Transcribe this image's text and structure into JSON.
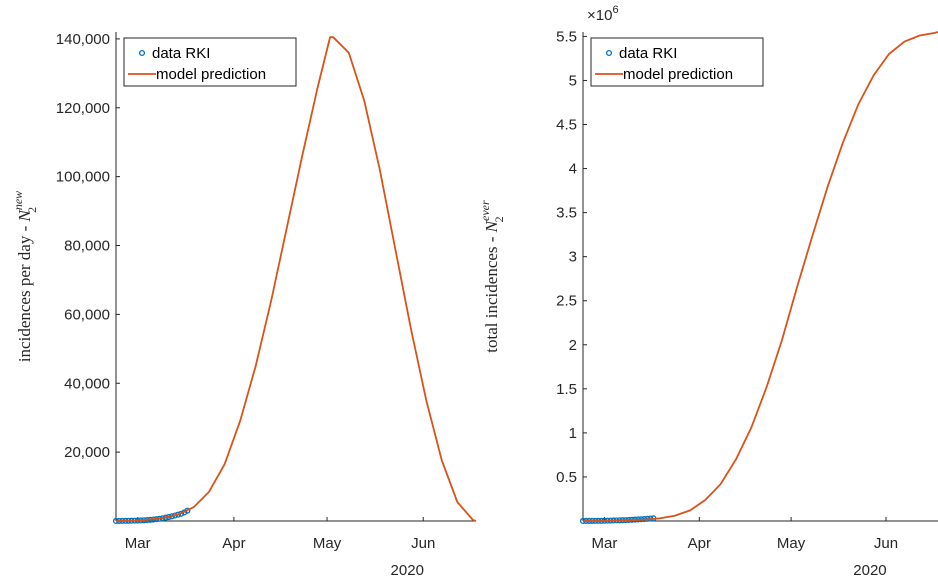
{
  "chart_data": [
    {
      "type": "line",
      "ylabel_prefix": "incidences per day - ",
      "ylabel_symbol": "N",
      "ylabel_sub": "2",
      "ylabel_sup": "new",
      "x_tick_labels": [
        "Mar",
        "Apr",
        "May",
        "Jun"
      ],
      "x_tick_days": [
        7,
        38,
        68,
        99
      ],
      "year_label": "2020",
      "xlim_days": [
        0,
        116
      ],
      "ylim": [
        0,
        142000
      ],
      "y_ticks": [
        20000,
        40000,
        60000,
        80000,
        100000,
        120000,
        140000
      ],
      "y_tick_labels": [
        "20,000",
        "40,000",
        "60,000",
        "80,000",
        "100,000",
        "120,000",
        "140,000"
      ],
      "legend_location": "top-left",
      "series": [
        {
          "name": "data RKI",
          "style": "markers",
          "color": "#0072BD",
          "x_days": [
            0,
            1,
            2,
            3,
            4,
            5,
            6,
            7,
            8,
            9,
            10,
            11,
            12,
            13,
            14,
            15,
            16,
            17,
            18,
            19,
            20,
            21,
            22,
            23
          ],
          "y": [
            10,
            20,
            30,
            40,
            60,
            80,
            100,
            130,
            160,
            200,
            260,
            340,
            420,
            520,
            640,
            800,
            950,
            1150,
            1350,
            1600,
            1850,
            2100,
            2500,
            3000
          ]
        },
        {
          "name": "model prediction",
          "style": "line",
          "color": "#D95319",
          "x_days": [
            0,
            5,
            10,
            15,
            20,
            25,
            30,
            35,
            40,
            45,
            50,
            55,
            60,
            65,
            69,
            70,
            75,
            80,
            85,
            90,
            95,
            100,
            105,
            110,
            115,
            116
          ],
          "y": [
            0,
            100,
            350,
            900,
            1900,
            4000,
            8500,
            16500,
            29000,
            45000,
            64000,
            85000,
            106000,
            126000,
            140500,
            140500,
            136000,
            122000,
            102000,
            79000,
            56000,
            35000,
            17500,
            5500,
            300,
            0
          ]
        }
      ]
    },
    {
      "type": "line",
      "ylabel_prefix": "total incidences - ",
      "ylabel_symbol": "N",
      "ylabel_sub": "2",
      "ylabel_sup": "ever",
      "x_tick_labels": [
        "Mar",
        "Apr",
        "May",
        "Jun"
      ],
      "x_tick_days": [
        7,
        38,
        68,
        99
      ],
      "year_label": "2020",
      "exponent_base": "×10",
      "exponent_power": "6",
      "xlim_days": [
        0,
        116
      ],
      "ylim": [
        0,
        5.55
      ],
      "y_ticks": [
        0.5,
        1,
        1.5,
        2,
        2.5,
        3,
        3.5,
        4,
        4.5,
        5,
        5.5
      ],
      "y_tick_labels": [
        "0.5",
        "1",
        "1.5",
        "2",
        "2.5",
        "3",
        "3.5",
        "4",
        "4.5",
        "5",
        "5.5"
      ],
      "legend_location": "top-left",
      "series": [
        {
          "name": "data RKI",
          "style": "markers",
          "color": "#0072BD",
          "x_days": [
            0,
            1,
            2,
            3,
            4,
            5,
            6,
            7,
            8,
            9,
            10,
            11,
            12,
            13,
            14,
            15,
            16,
            17,
            18,
            19,
            20,
            21,
            22,
            23
          ],
          "y": [
            0.0005,
            0.0005,
            0.001,
            0.001,
            0.0015,
            0.002,
            0.002,
            0.003,
            0.004,
            0.005,
            0.006,
            0.007,
            0.008,
            0.009,
            0.01,
            0.012,
            0.014,
            0.016,
            0.018,
            0.02,
            0.022,
            0.025,
            0.028,
            0.03
          ]
        },
        {
          "name": "model prediction",
          "style": "line",
          "color": "#D95319",
          "x_days": [
            0,
            5,
            10,
            15,
            20,
            25,
            30,
            35,
            40,
            45,
            50,
            55,
            60,
            65,
            70,
            75,
            80,
            85,
            90,
            95,
            100,
            105,
            110,
            115,
            116
          ],
          "y": [
            0,
            0.001,
            0.003,
            0.007,
            0.015,
            0.03,
            0.06,
            0.12,
            0.24,
            0.42,
            0.7,
            1.06,
            1.52,
            2.05,
            2.66,
            3.24,
            3.8,
            4.3,
            4.73,
            5.06,
            5.3,
            5.44,
            5.51,
            5.54,
            5.55
          ]
        }
      ]
    }
  ]
}
